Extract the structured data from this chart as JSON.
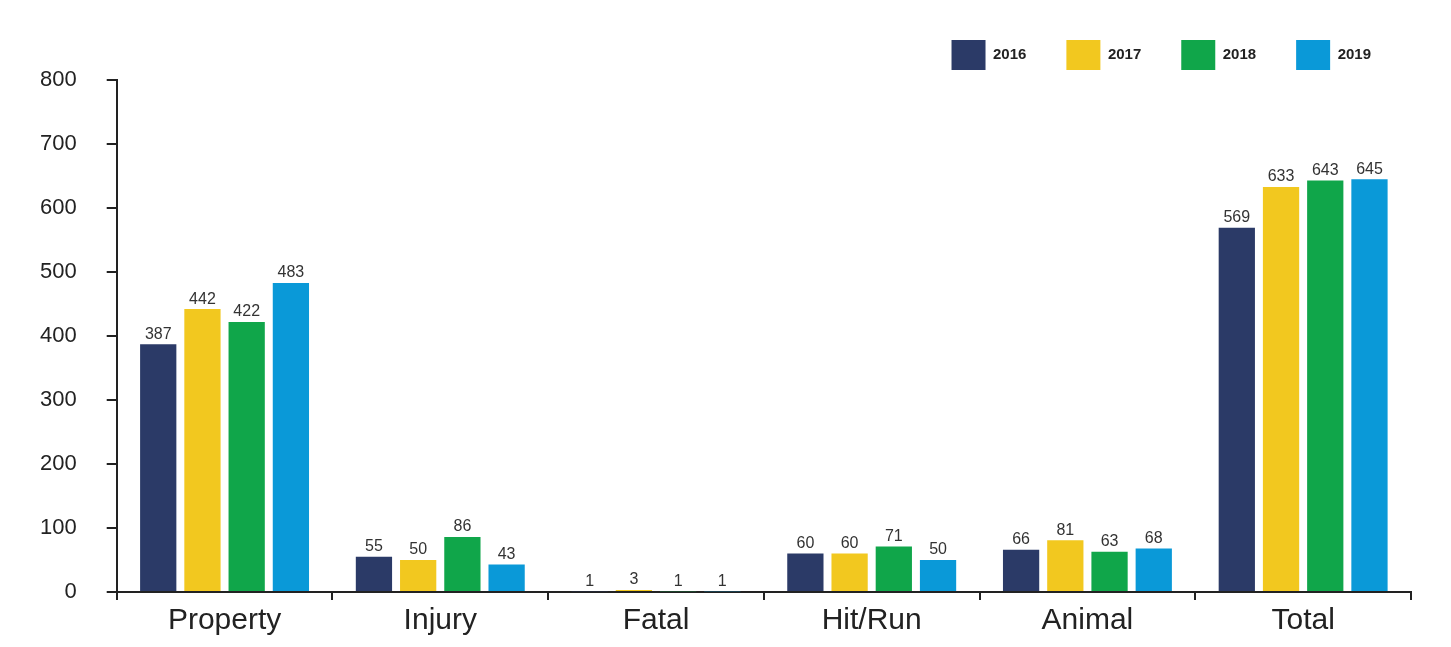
{
  "chart_data": {
    "type": "bar",
    "categories": [
      "Property",
      "Injury",
      "Fatal",
      "Hit/Run",
      "Animal",
      "Total"
    ],
    "series": [
      {
        "name": "2016",
        "color": "#2b3a67",
        "values": [
          387,
          55,
          1,
          60,
          66,
          569
        ]
      },
      {
        "name": "2017",
        "color": "#f2c81f",
        "values": [
          442,
          50,
          3,
          60,
          81,
          633
        ]
      },
      {
        "name": "2018",
        "color": "#10a64a",
        "values": [
          422,
          86,
          1,
          71,
          63,
          643
        ]
      },
      {
        "name": "2019",
        "color": "#0a99d8",
        "values": [
          483,
          43,
          1,
          50,
          68,
          645
        ]
      }
    ],
    "ylim": [
      0,
      800
    ],
    "yticks": [
      0,
      100,
      200,
      300,
      400,
      500,
      600,
      700,
      800
    ],
    "grid": false,
    "legend": "top right",
    "data_labels": true
  }
}
